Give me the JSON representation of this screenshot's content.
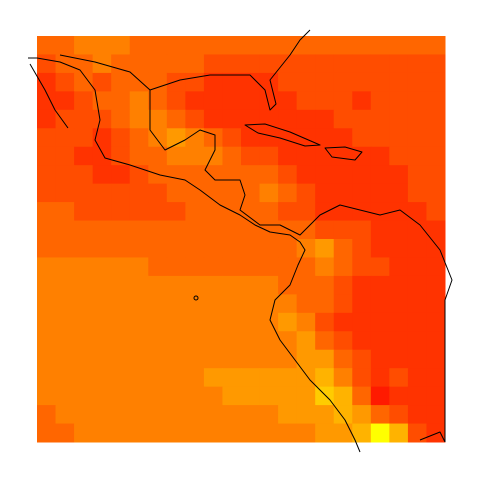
{
  "chart_data": {
    "type": "heatmap",
    "colors": [
      "#ff1a00",
      "#ffff00"
    ],
    "zlim": [
      0,
      9
    ],
    "values": [
      [
        3,
        3,
        4,
        4,
        4,
        3,
        3,
        3,
        3,
        3,
        3,
        3,
        3,
        3,
        3,
        3,
        3,
        3,
        3,
        3,
        3,
        3
      ],
      [
        2,
        3,
        3,
        4,
        3,
        3,
        3,
        3,
        3,
        2,
        2,
        2,
        2,
        2,
        2,
        2,
        2,
        2,
        2,
        2,
        2,
        2
      ],
      [
        1,
        2,
        3,
        2,
        3,
        3,
        3,
        2,
        2,
        1,
        1,
        1,
        1,
        2,
        2,
        2,
        2,
        2,
        2,
        2,
        2,
        2
      ],
      [
        1,
        1,
        2,
        3,
        3,
        4,
        3,
        2,
        1,
        1,
        1,
        1,
        1,
        1,
        2,
        2,
        2,
        1,
        2,
        2,
        2,
        2
      ],
      [
        1,
        2,
        2,
        2,
        3,
        4,
        4,
        3,
        2,
        1,
        1,
        1,
        1,
        1,
        1,
        1,
        2,
        2,
        2,
        2,
        2,
        2
      ],
      [
        2,
        2,
        2,
        1,
        2,
        3,
        4,
        5,
        4,
        3,
        2,
        1,
        1,
        1,
        1,
        1,
        1,
        2,
        2,
        2,
        2,
        2
      ],
      [
        2,
        2,
        1,
        1,
        2,
        3,
        3,
        4,
        4,
        4,
        3,
        2,
        2,
        1,
        1,
        1,
        1,
        1,
        1,
        2,
        2,
        2
      ],
      [
        2,
        2,
        2,
        1,
        1,
        2,
        3,
        3,
        3,
        3,
        3,
        3,
        3,
        2,
        1,
        1,
        1,
        1,
        1,
        1,
        2,
        2
      ],
      [
        2,
        2,
        2,
        2,
        2,
        2,
        2,
        3,
        3,
        3,
        3,
        3,
        4,
        3,
        2,
        1,
        1,
        1,
        1,
        1,
        2,
        2
      ],
      [
        3,
        3,
        2,
        2,
        2,
        2,
        2,
        2,
        3,
        3,
        3,
        3,
        3,
        2,
        2,
        1,
        1,
        1,
        1,
        1,
        1,
        2
      ],
      [
        3,
        3,
        3,
        3,
        3,
        3,
        3,
        3,
        3,
        3,
        3,
        3,
        3,
        3,
        3,
        2,
        2,
        2,
        1,
        1,
        1,
        1
      ],
      [
        3,
        3,
        3,
        3,
        3,
        3,
        3,
        3,
        3,
        3,
        3,
        3,
        3,
        3,
        4,
        5,
        3,
        2,
        1,
        1,
        1,
        1
      ],
      [
        4,
        4,
        4,
        4,
        4,
        4,
        3,
        3,
        3,
        3,
        3,
        3,
        3,
        3,
        3,
        4,
        3,
        2,
        2,
        1,
        1,
        1
      ],
      [
        4,
        4,
        4,
        4,
        4,
        4,
        4,
        4,
        4,
        4,
        4,
        4,
        4,
        3,
        3,
        3,
        2,
        1,
        1,
        1,
        1,
        1
      ],
      [
        4,
        4,
        4,
        4,
        4,
        4,
        4,
        4,
        4,
        4,
        4,
        4,
        4,
        4,
        3,
        3,
        2,
        1,
        1,
        1,
        1,
        1
      ],
      [
        4,
        4,
        4,
        4,
        4,
        4,
        4,
        4,
        4,
        4,
        4,
        4,
        4,
        5,
        4,
        2,
        1,
        1,
        1,
        1,
        1,
        1
      ],
      [
        4,
        4,
        4,
        4,
        4,
        4,
        4,
        4,
        4,
        4,
        4,
        4,
        4,
        4,
        5,
        3,
        2,
        1,
        1,
        1,
        1,
        1
      ],
      [
        4,
        4,
        4,
        4,
        4,
        4,
        4,
        4,
        4,
        4,
        4,
        4,
        4,
        4,
        5,
        5,
        3,
        2,
        1,
        1,
        1,
        1
      ],
      [
        4,
        4,
        4,
        4,
        4,
        4,
        4,
        4,
        4,
        5,
        5,
        5,
        5,
        5,
        5,
        6,
        4,
        2,
        1,
        2,
        1,
        1
      ],
      [
        4,
        4,
        4,
        4,
        4,
        4,
        4,
        4,
        4,
        4,
        5,
        5,
        5,
        5,
        5,
        7,
        6,
        3,
        0,
        1,
        1,
        1
      ],
      [
        3,
        4,
        4,
        4,
        4,
        4,
        4,
        4,
        4,
        4,
        4,
        4,
        4,
        5,
        5,
        5,
        6,
        5,
        3,
        2,
        1,
        1
      ],
      [
        3,
        3,
        4,
        4,
        4,
        4,
        4,
        4,
        4,
        4,
        4,
        4,
        4,
        4,
        4,
        5,
        5,
        6,
        9,
        6,
        2,
        1
      ]
    ]
  }
}
